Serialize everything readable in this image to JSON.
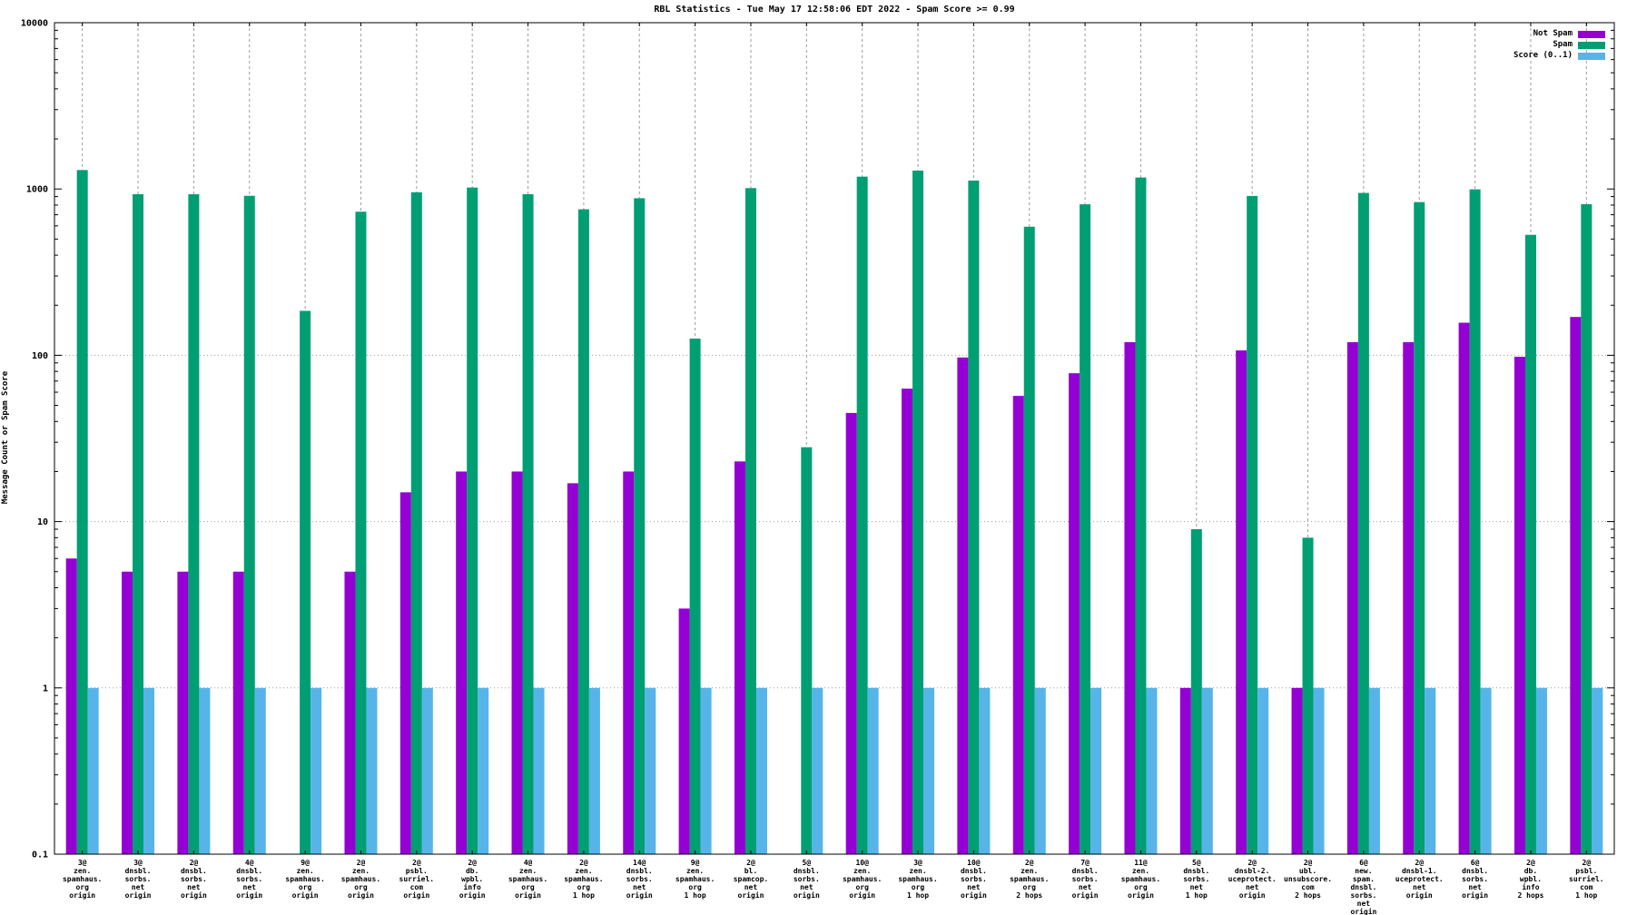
{
  "title": "RBL Statistics - Tue May 17 12:58:06 EDT 2022 - Spam Score >= 0.99",
  "colors": {
    "not_spam": "#9400d3",
    "spam": "#009e73",
    "score": "#56b4e9",
    "grid": "#9c9c9c",
    "axis": "#000000"
  },
  "legend": {
    "items": [
      {
        "label": "Not Spam",
        "color_key": "not_spam"
      },
      {
        "label": "Spam",
        "color_key": "spam"
      },
      {
        "label": "Score (0..1)",
        "color_key": "score"
      }
    ]
  },
  "chart_data": {
    "type": "bar",
    "title": "RBL Statistics - Tue May 17 12:58:06 EDT 2022 - Spam Score >= 0.99",
    "xlabel": "",
    "ylabel": "Message Count or Spam Score",
    "yscale": "log",
    "ylim": [
      0.1,
      10000
    ],
    "ytick_values": [
      0.1,
      1,
      10,
      100,
      1000,
      10000
    ],
    "ytick_labels": [
      "0.1",
      "1",
      "10",
      "100",
      "1000",
      "10000"
    ],
    "grid": true,
    "legend_position": "top-right-inside",
    "categories": [
      [
        "3@",
        "zen.",
        "spamhaus.",
        "org",
        "origin"
      ],
      [
        "3@",
        "dnsbl.",
        "sorbs.",
        "net",
        "origin"
      ],
      [
        "2@",
        "dnsbl.",
        "sorbs.",
        "net",
        "origin"
      ],
      [
        "4@",
        "dnsbl.",
        "sorbs.",
        "net",
        "origin"
      ],
      [
        "9@",
        "zen.",
        "spamhaus.",
        "org",
        "origin"
      ],
      [
        "2@",
        "zen.",
        "spamhaus.",
        "org",
        "origin"
      ],
      [
        "2@",
        "psbl.",
        "surriel.",
        "com",
        "origin"
      ],
      [
        "2@",
        "db.",
        "wpbl.",
        "info",
        "origin"
      ],
      [
        "4@",
        "zen.",
        "spamhaus.",
        "org",
        "origin"
      ],
      [
        "2@",
        "zen.",
        "spamhaus.",
        "org",
        "1 hop"
      ],
      [
        "14@",
        "dnsbl.",
        "sorbs.",
        "net",
        "origin"
      ],
      [
        "9@",
        "zen.",
        "spamhaus.",
        "org",
        "1 hop"
      ],
      [
        "2@",
        "bl.",
        "spamcop.",
        "net",
        "origin"
      ],
      [
        "5@",
        "dnsbl.",
        "sorbs.",
        "net",
        "origin"
      ],
      [
        "10@",
        "zen.",
        "spamhaus.",
        "org",
        "origin"
      ],
      [
        "3@",
        "zen.",
        "spamhaus.",
        "org",
        "1 hop"
      ],
      [
        "10@",
        "dnsbl.",
        "sorbs.",
        "net",
        "origin"
      ],
      [
        "2@",
        "zen.",
        "spamhaus.",
        "org",
        "2 hops"
      ],
      [
        "7@",
        "dnsbl.",
        "sorbs.",
        "net",
        "origin"
      ],
      [
        "11@",
        "zen.",
        "spamhaus.",
        "org",
        "origin"
      ],
      [
        "5@",
        "dnsbl.",
        "sorbs.",
        "net",
        "1 hop"
      ],
      [
        "2@",
        "dnsbl-2.",
        "uceprotect.",
        "net",
        "origin"
      ],
      [
        "2@",
        "ubl.",
        "unsubscore.",
        "com",
        "2 hops"
      ],
      [
        "6@",
        "new.",
        "spam.",
        "dnsbl.",
        "sorbs.",
        "net",
        "origin"
      ],
      [
        "2@",
        "dnsbl-1.",
        "uceprotect.",
        "net",
        "origin"
      ],
      [
        "6@",
        "dnsbl.",
        "sorbs.",
        "net",
        "origin"
      ],
      [
        "2@",
        "db.",
        "wpbl.",
        "info",
        "2 hops"
      ],
      [
        "2@",
        "psbl.",
        "surriel.",
        "com",
        "1 hop"
      ]
    ],
    "series": [
      {
        "name": "Not Spam",
        "color_key": "not_spam",
        "values": [
          6,
          5,
          5,
          5,
          0,
          5,
          15,
          20,
          20,
          17,
          20,
          3,
          23,
          0,
          45,
          63,
          97,
          57,
          78,
          120,
          1,
          107,
          1,
          120,
          120,
          157,
          98,
          170
        ]
      },
      {
        "name": "Spam",
        "color_key": "spam",
        "values": [
          1300,
          930,
          930,
          910,
          185,
          730,
          956,
          1020,
          930,
          755,
          880,
          126,
          1012,
          28,
          1186,
          1290,
          1124,
          593,
          809,
          1172,
          9,
          908,
          8,
          947,
          834,
          995,
          530,
          810
        ]
      },
      {
        "name": "Score (0..1)",
        "color_key": "score",
        "values": [
          1,
          1,
          1,
          1,
          1,
          1,
          1,
          1,
          1,
          1,
          1,
          1,
          1,
          1,
          1,
          1,
          1,
          1,
          1,
          1,
          1,
          1,
          1,
          1,
          1,
          1,
          1,
          1
        ]
      }
    ]
  }
}
